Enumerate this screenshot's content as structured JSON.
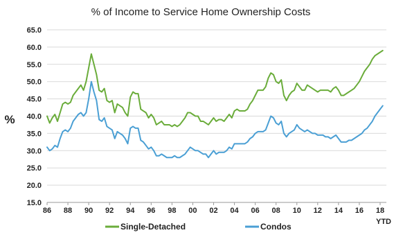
{
  "chart_data": {
    "type": "line",
    "title": "",
    "subtitle": "% of Income to Service Home Ownership Costs",
    "ylabel": "%",
    "xlabel": "",
    "ylim": [
      15.0,
      65.0
    ],
    "yticks": [
      "15.0",
      "20.0",
      "25.0",
      "30.0",
      "35.0",
      "40.0",
      "45.0",
      "50.0",
      "55.0",
      "60.0",
      "65.0"
    ],
    "xlim": [
      1986,
      2018.6
    ],
    "xticks": [
      "86",
      "88",
      "90",
      "92",
      "94",
      "96",
      "98",
      "00",
      "02",
      "04",
      "06",
      "08",
      "10",
      "12",
      "14",
      "16",
      "18"
    ],
    "x_note": "YTD",
    "grid": true,
    "legend_position": "bottom",
    "series": [
      {
        "name": "Single-Detached",
        "color": "#6aac3a",
        "points": [
          [
            1986.0,
            40.0
          ],
          [
            1986.25,
            38.0
          ],
          [
            1986.5,
            39.5
          ],
          [
            1986.75,
            40.5
          ],
          [
            1987.0,
            38.5
          ],
          [
            1987.25,
            41.0
          ],
          [
            1987.5,
            43.5
          ],
          [
            1987.75,
            44.0
          ],
          [
            1988.0,
            43.5
          ],
          [
            1988.25,
            44.0
          ],
          [
            1988.5,
            46.0
          ],
          [
            1988.75,
            47.0
          ],
          [
            1989.0,
            48.0
          ],
          [
            1989.25,
            49.0
          ],
          [
            1989.5,
            47.5
          ],
          [
            1989.75,
            50.0
          ],
          [
            1990.0,
            54.0
          ],
          [
            1990.25,
            58.0
          ],
          [
            1990.5,
            55.0
          ],
          [
            1990.75,
            52.0
          ],
          [
            1991.0,
            47.5
          ],
          [
            1991.25,
            47.0
          ],
          [
            1991.5,
            48.0
          ],
          [
            1991.75,
            44.5
          ],
          [
            1992.0,
            44.0
          ],
          [
            1992.25,
            44.5
          ],
          [
            1992.5,
            41.0
          ],
          [
            1992.75,
            43.5
          ],
          [
            1993.0,
            43.0
          ],
          [
            1993.25,
            42.5
          ],
          [
            1993.5,
            41.0
          ],
          [
            1993.75,
            40.0
          ],
          [
            1994.0,
            45.5
          ],
          [
            1994.25,
            47.0
          ],
          [
            1994.5,
            46.5
          ],
          [
            1994.75,
            46.5
          ],
          [
            1995.0,
            42.0
          ],
          [
            1995.25,
            41.5
          ],
          [
            1995.5,
            41.0
          ],
          [
            1995.75,
            39.5
          ],
          [
            1996.0,
            40.5
          ],
          [
            1996.25,
            39.5
          ],
          [
            1996.5,
            37.5
          ],
          [
            1996.75,
            38.0
          ],
          [
            1997.0,
            38.5
          ],
          [
            1997.25,
            37.5
          ],
          [
            1997.5,
            37.5
          ],
          [
            1997.75,
            37.5
          ],
          [
            1998.0,
            37.0
          ],
          [
            1998.25,
            37.5
          ],
          [
            1998.5,
            37.0
          ],
          [
            1998.75,
            37.5
          ],
          [
            1999.0,
            38.5
          ],
          [
            1999.25,
            39.5
          ],
          [
            1999.5,
            41.0
          ],
          [
            1999.75,
            41.0
          ],
          [
            2000.0,
            40.5
          ],
          [
            2000.25,
            40.0
          ],
          [
            2000.5,
            40.0
          ],
          [
            2000.75,
            38.5
          ],
          [
            2001.0,
            38.5
          ],
          [
            2001.25,
            38.0
          ],
          [
            2001.5,
            37.5
          ],
          [
            2001.75,
            38.5
          ],
          [
            2002.0,
            39.5
          ],
          [
            2002.25,
            38.5
          ],
          [
            2002.5,
            39.0
          ],
          [
            2002.75,
            39.0
          ],
          [
            2003.0,
            38.5
          ],
          [
            2003.25,
            39.5
          ],
          [
            2003.5,
            40.5
          ],
          [
            2003.75,
            39.5
          ],
          [
            2004.0,
            41.5
          ],
          [
            2004.25,
            42.0
          ],
          [
            2004.5,
            41.5
          ],
          [
            2004.75,
            41.5
          ],
          [
            2005.0,
            41.5
          ],
          [
            2005.25,
            42.0
          ],
          [
            2005.5,
            43.5
          ],
          [
            2005.75,
            44.5
          ],
          [
            2006.0,
            46.0
          ],
          [
            2006.25,
            47.5
          ],
          [
            2006.5,
            47.5
          ],
          [
            2006.75,
            47.5
          ],
          [
            2007.0,
            48.5
          ],
          [
            2007.25,
            51.0
          ],
          [
            2007.5,
            52.5
          ],
          [
            2007.75,
            52.0
          ],
          [
            2008.0,
            50.0
          ],
          [
            2008.25,
            49.5
          ],
          [
            2008.5,
            50.5
          ],
          [
            2008.75,
            46.0
          ],
          [
            2009.0,
            44.5
          ],
          [
            2009.25,
            46.0
          ],
          [
            2009.5,
            47.0
          ],
          [
            2009.75,
            47.5
          ],
          [
            2010.0,
            49.5
          ],
          [
            2010.25,
            48.5
          ],
          [
            2010.5,
            47.5
          ],
          [
            2010.75,
            47.5
          ],
          [
            2011.0,
            49.0
          ],
          [
            2011.25,
            48.5
          ],
          [
            2011.5,
            48.0
          ],
          [
            2011.75,
            47.5
          ],
          [
            2012.0,
            47.0
          ],
          [
            2012.25,
            47.5
          ],
          [
            2012.5,
            47.5
          ],
          [
            2012.75,
            47.5
          ],
          [
            2013.0,
            47.5
          ],
          [
            2013.25,
            47.0
          ],
          [
            2013.5,
            48.0
          ],
          [
            2013.75,
            48.5
          ],
          [
            2014.0,
            47.5
          ],
          [
            2014.25,
            46.0
          ],
          [
            2014.5,
            46.0
          ],
          [
            2014.75,
            46.5
          ],
          [
            2015.0,
            47.0
          ],
          [
            2015.25,
            47.5
          ],
          [
            2015.5,
            48.0
          ],
          [
            2015.75,
            49.0
          ],
          [
            2016.0,
            50.0
          ],
          [
            2016.25,
            51.5
          ],
          [
            2016.5,
            53.0
          ],
          [
            2016.75,
            54.0
          ],
          [
            2017.0,
            55.0
          ],
          [
            2017.25,
            56.5
          ],
          [
            2017.5,
            57.5
          ],
          [
            2017.75,
            58.0
          ],
          [
            2018.0,
            58.5
          ],
          [
            2018.25,
            59.0
          ]
        ]
      },
      {
        "name": "Condos",
        "color": "#4a9fd4",
        "points": [
          [
            1986.0,
            31.0
          ],
          [
            1986.25,
            30.0
          ],
          [
            1986.5,
            30.5
          ],
          [
            1986.75,
            31.5
          ],
          [
            1987.0,
            31.0
          ],
          [
            1987.25,
            33.5
          ],
          [
            1987.5,
            35.5
          ],
          [
            1987.75,
            36.0
          ],
          [
            1988.0,
            35.5
          ],
          [
            1988.25,
            36.5
          ],
          [
            1988.5,
            38.5
          ],
          [
            1988.75,
            39.5
          ],
          [
            1989.0,
            40.5
          ],
          [
            1989.25,
            41.0
          ],
          [
            1989.5,
            40.0
          ],
          [
            1989.75,
            41.0
          ],
          [
            1990.0,
            45.0
          ],
          [
            1990.25,
            50.0
          ],
          [
            1990.5,
            47.0
          ],
          [
            1990.75,
            44.5
          ],
          [
            1991.0,
            39.0
          ],
          [
            1991.25,
            38.5
          ],
          [
            1991.5,
            39.5
          ],
          [
            1991.75,
            37.0
          ],
          [
            1992.0,
            36.5
          ],
          [
            1992.25,
            36.0
          ],
          [
            1992.5,
            33.5
          ],
          [
            1992.75,
            35.5
          ],
          [
            1993.0,
            35.0
          ],
          [
            1993.25,
            34.5
          ],
          [
            1993.5,
            33.5
          ],
          [
            1993.75,
            32.0
          ],
          [
            1994.0,
            36.5
          ],
          [
            1994.25,
            37.0
          ],
          [
            1994.5,
            36.5
          ],
          [
            1994.75,
            36.5
          ],
          [
            1995.0,
            33.0
          ],
          [
            1995.25,
            32.5
          ],
          [
            1995.5,
            31.5
          ],
          [
            1995.75,
            30.5
          ],
          [
            1996.0,
            31.0
          ],
          [
            1996.25,
            30.0
          ],
          [
            1996.5,
            28.5
          ],
          [
            1996.75,
            28.5
          ],
          [
            1997.0,
            29.0
          ],
          [
            1997.25,
            28.5
          ],
          [
            1997.5,
            28.0
          ],
          [
            1997.75,
            28.0
          ],
          [
            1998.0,
            28.0
          ],
          [
            1998.25,
            28.5
          ],
          [
            1998.5,
            28.0
          ],
          [
            1998.75,
            28.0
          ],
          [
            1999.0,
            28.5
          ],
          [
            1999.25,
            29.0
          ],
          [
            1999.5,
            30.0
          ],
          [
            1999.75,
            31.0
          ],
          [
            2000.0,
            30.5
          ],
          [
            2000.25,
            30.0
          ],
          [
            2000.5,
            30.0
          ],
          [
            2000.75,
            29.5
          ],
          [
            2001.0,
            29.0
          ],
          [
            2001.25,
            29.0
          ],
          [
            2001.5,
            28.0
          ],
          [
            2001.75,
            29.0
          ],
          [
            2002.0,
            30.0
          ],
          [
            2002.25,
            29.0
          ],
          [
            2002.5,
            29.5
          ],
          [
            2002.75,
            29.5
          ],
          [
            2003.0,
            29.5
          ],
          [
            2003.25,
            30.0
          ],
          [
            2003.5,
            31.0
          ],
          [
            2003.75,
            30.5
          ],
          [
            2004.0,
            32.0
          ],
          [
            2004.25,
            32.0
          ],
          [
            2004.5,
            32.0
          ],
          [
            2004.75,
            32.0
          ],
          [
            2005.0,
            32.0
          ],
          [
            2005.25,
            32.5
          ],
          [
            2005.5,
            33.5
          ],
          [
            2005.75,
            34.0
          ],
          [
            2006.0,
            35.0
          ],
          [
            2006.25,
            35.5
          ],
          [
            2006.5,
            35.5
          ],
          [
            2006.75,
            35.5
          ],
          [
            2007.0,
            36.0
          ],
          [
            2007.25,
            38.0
          ],
          [
            2007.5,
            40.0
          ],
          [
            2007.75,
            39.5
          ],
          [
            2008.0,
            38.0
          ],
          [
            2008.25,
            37.5
          ],
          [
            2008.5,
            38.5
          ],
          [
            2008.75,
            35.0
          ],
          [
            2009.0,
            34.0
          ],
          [
            2009.25,
            35.0
          ],
          [
            2009.5,
            35.5
          ],
          [
            2009.75,
            36.0
          ],
          [
            2010.0,
            37.5
          ],
          [
            2010.25,
            36.5
          ],
          [
            2010.5,
            36.0
          ],
          [
            2010.75,
            35.5
          ],
          [
            2011.0,
            36.0
          ],
          [
            2011.25,
            35.5
          ],
          [
            2011.5,
            35.0
          ],
          [
            2011.75,
            35.0
          ],
          [
            2012.0,
            34.5
          ],
          [
            2012.25,
            34.5
          ],
          [
            2012.5,
            34.5
          ],
          [
            2012.75,
            34.0
          ],
          [
            2013.0,
            34.0
          ],
          [
            2013.25,
            33.5
          ],
          [
            2013.5,
            34.0
          ],
          [
            2013.75,
            34.5
          ],
          [
            2014.0,
            33.5
          ],
          [
            2014.25,
            32.5
          ],
          [
            2014.5,
            32.5
          ],
          [
            2014.75,
            32.5
          ],
          [
            2015.0,
            33.0
          ],
          [
            2015.25,
            33.0
          ],
          [
            2015.5,
            33.5
          ],
          [
            2015.75,
            34.0
          ],
          [
            2016.0,
            34.5
          ],
          [
            2016.25,
            35.0
          ],
          [
            2016.5,
            36.0
          ],
          [
            2016.75,
            36.5
          ],
          [
            2017.0,
            37.5
          ],
          [
            2017.25,
            38.5
          ],
          [
            2017.5,
            40.0
          ],
          [
            2017.75,
            41.0
          ],
          [
            2018.0,
            42.0
          ],
          [
            2018.25,
            43.0
          ]
        ]
      }
    ]
  }
}
